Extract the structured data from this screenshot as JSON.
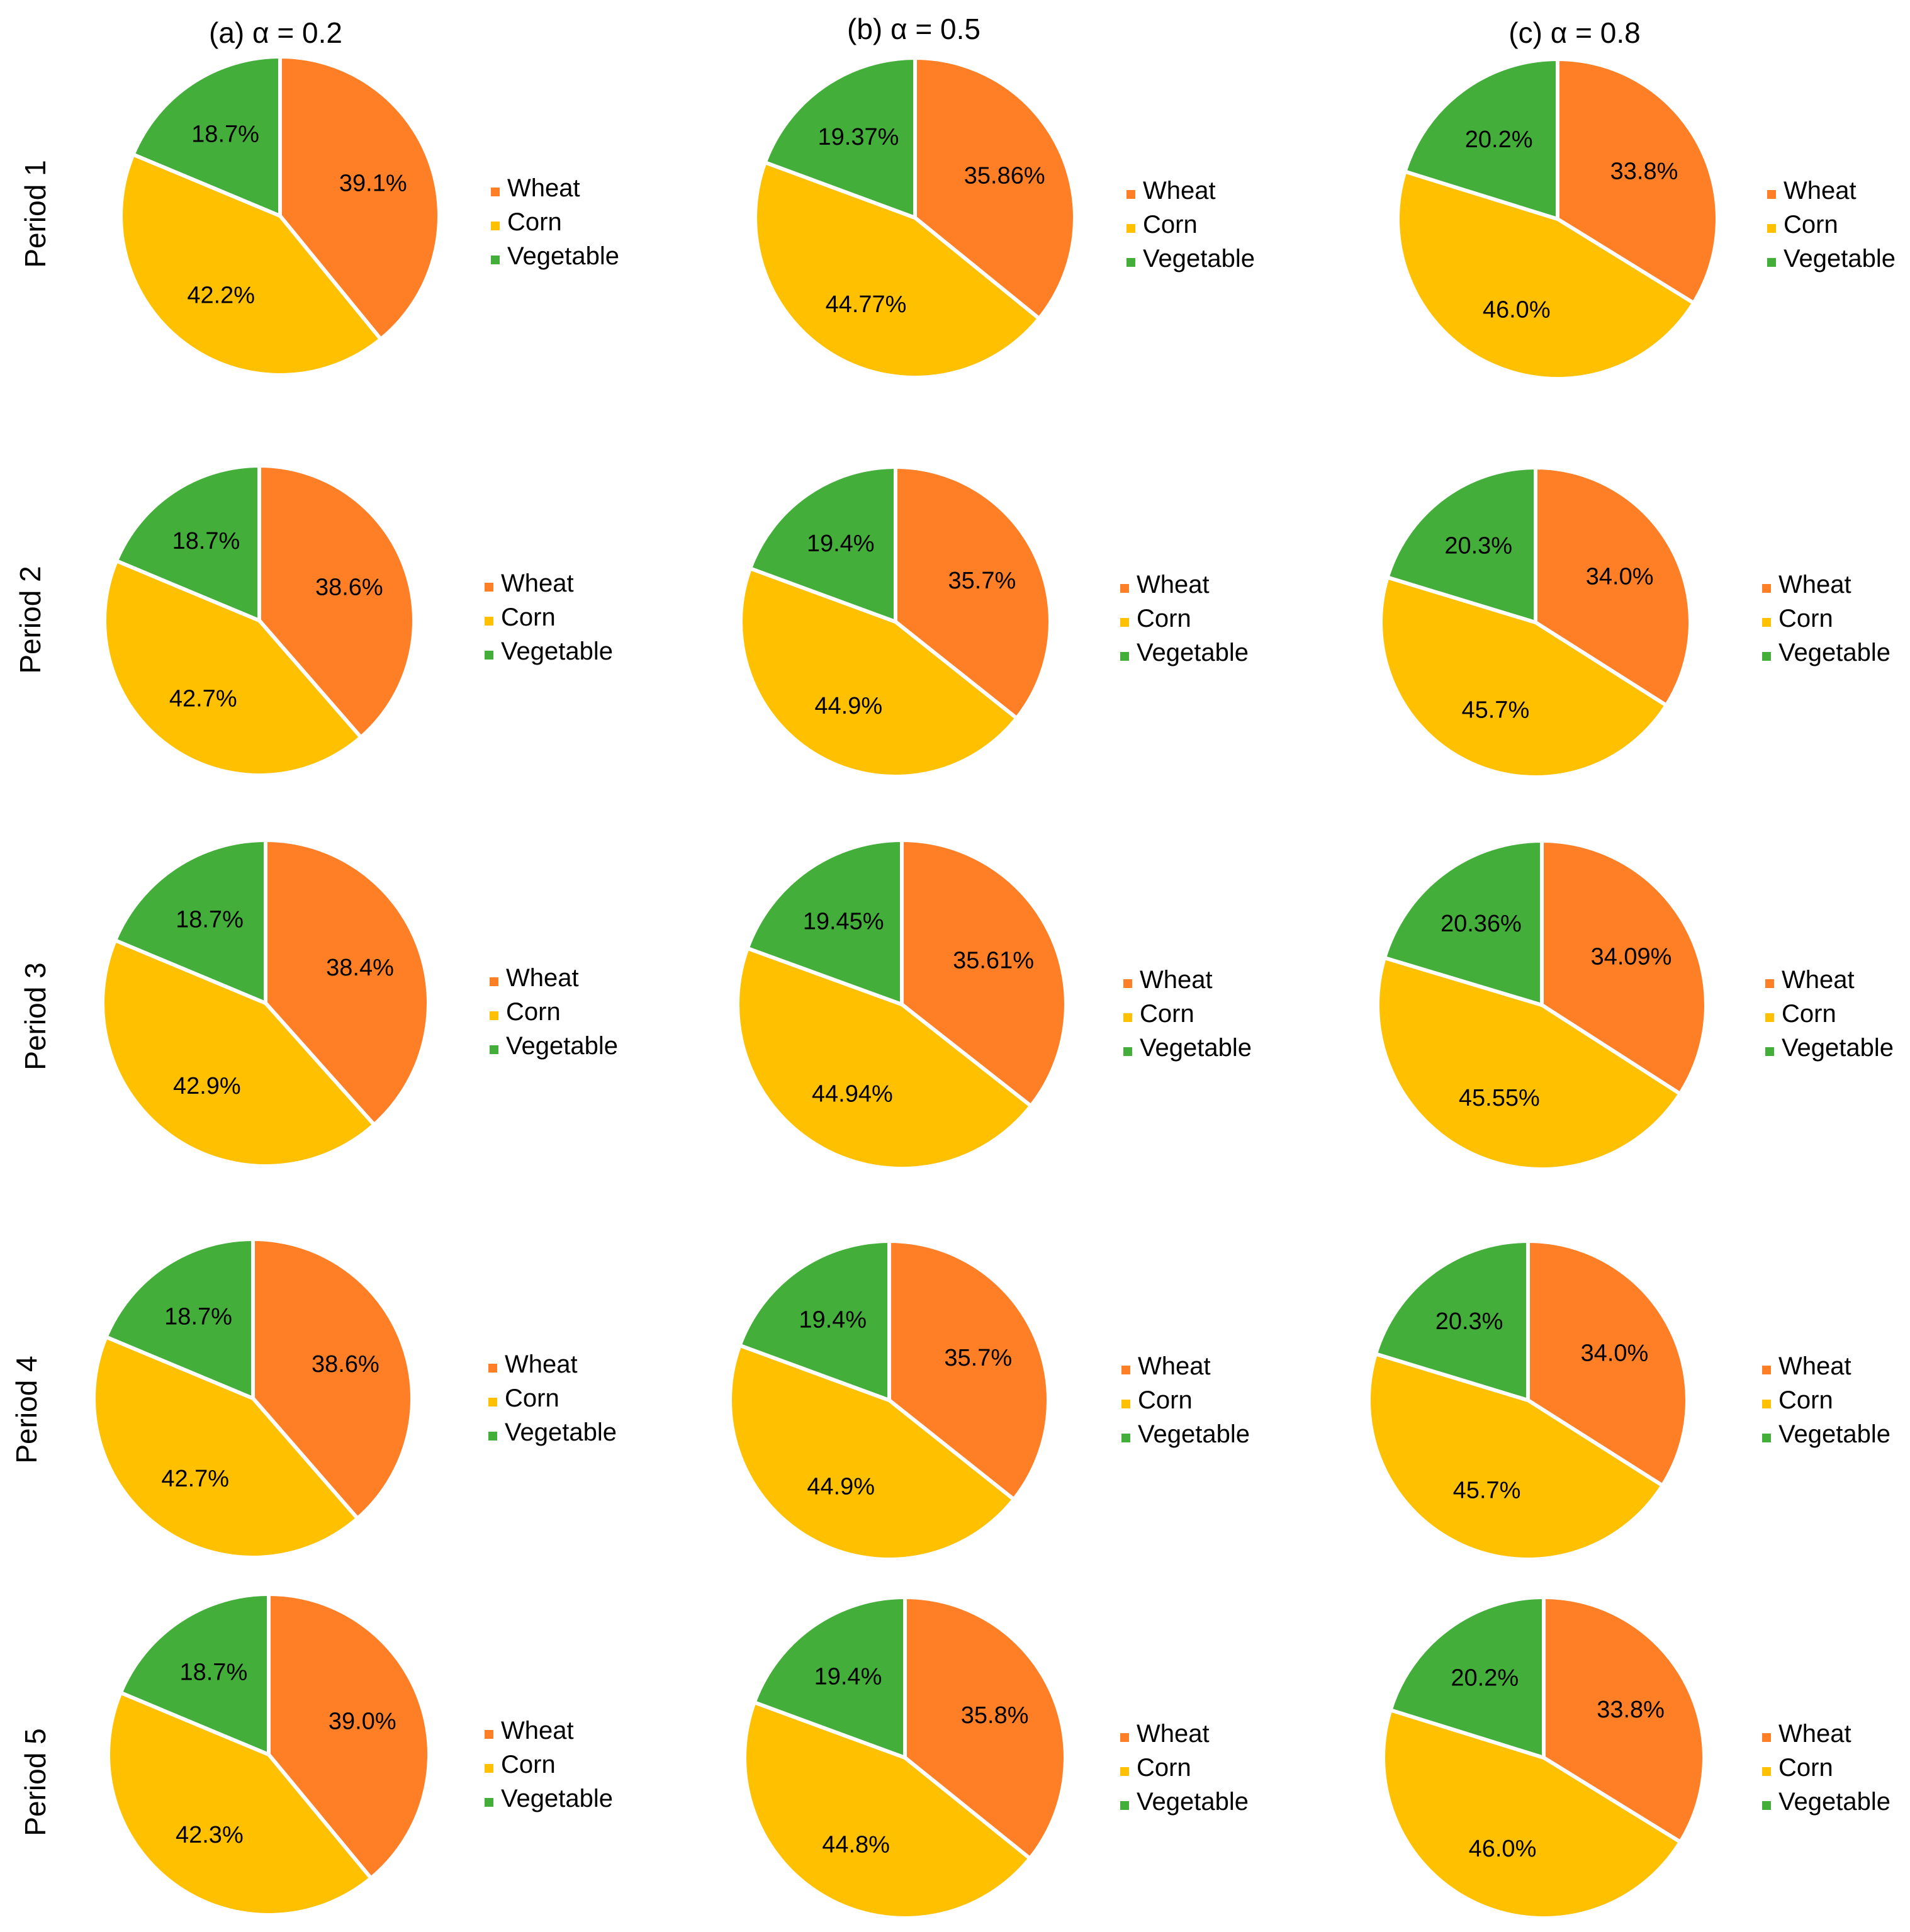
{
  "figure": {
    "columns": [
      "(a) α = 0.2",
      "(b) α = 0.5",
      "(c) α = 0.8"
    ],
    "rows": [
      "Period 1",
      "Period 2",
      "Period 3",
      "Period 4",
      "Period 5"
    ]
  },
  "colors": {
    "Wheat": "#FF7F27",
    "Corn": "#FFC000",
    "Vegetable": "#43AE3A",
    "separator": "#FFFFFF"
  },
  "chart_data": [
    {
      "type": "pie",
      "column": "(a) α = 0.2",
      "row": "Period 1",
      "categories": [
        "Wheat",
        "Corn",
        "Vegetable"
      ],
      "values": [
        39.1,
        42.2,
        18.7
      ],
      "labels": [
        "39.1%",
        "42.2%",
        "18.7%"
      ]
    },
    {
      "type": "pie",
      "column": "(b) α = 0.5",
      "row": "Period 1",
      "categories": [
        "Wheat",
        "Corn",
        "Vegetable"
      ],
      "values": [
        35.86,
        44.77,
        19.37
      ],
      "labels": [
        "35.86%",
        "44.77%",
        "19.37%"
      ]
    },
    {
      "type": "pie",
      "column": "(c) α = 0.8",
      "row": "Period 1",
      "categories": [
        "Wheat",
        "Corn",
        "Vegetable"
      ],
      "values": [
        33.8,
        46.0,
        20.2
      ],
      "labels": [
        "33.8%",
        "46.0%",
        "20.2%"
      ]
    },
    {
      "type": "pie",
      "column": "(a) α = 0.2",
      "row": "Period 2",
      "categories": [
        "Wheat",
        "Corn",
        "Vegetable"
      ],
      "values": [
        38.6,
        42.7,
        18.7
      ],
      "labels": [
        "38.6%",
        "42.7%",
        "18.7%"
      ]
    },
    {
      "type": "pie",
      "column": "(b) α = 0.5",
      "row": "Period 2",
      "categories": [
        "Wheat",
        "Corn",
        "Vegetable"
      ],
      "values": [
        35.7,
        44.9,
        19.4
      ],
      "labels": [
        "35.7%",
        "44.9%",
        "19.4%"
      ]
    },
    {
      "type": "pie",
      "column": "(c) α = 0.8",
      "row": "Period 2",
      "categories": [
        "Wheat",
        "Corn",
        "Vegetable"
      ],
      "values": [
        34.0,
        45.7,
        20.3
      ],
      "labels": [
        "34.0%",
        "45.7%",
        "20.3%"
      ]
    },
    {
      "type": "pie",
      "column": "(a) α = 0.2",
      "row": "Period 3",
      "categories": [
        "Wheat",
        "Corn",
        "Vegetable"
      ],
      "values": [
        38.4,
        42.9,
        18.7
      ],
      "labels": [
        "38.4%",
        "42.9%",
        "18.7%"
      ]
    },
    {
      "type": "pie",
      "column": "(b) α = 0.5",
      "row": "Period 3",
      "categories": [
        "Wheat",
        "Corn",
        "Vegetable"
      ],
      "values": [
        35.61,
        44.94,
        19.45
      ],
      "labels": [
        "35.61%",
        "44.94%",
        "19.45%"
      ]
    },
    {
      "type": "pie",
      "column": "(c) α = 0.8",
      "row": "Period 3",
      "categories": [
        "Wheat",
        "Corn",
        "Vegetable"
      ],
      "values": [
        34.09,
        45.55,
        20.36
      ],
      "labels": [
        "34.09%",
        "45.55%",
        "20.36%"
      ]
    },
    {
      "type": "pie",
      "column": "(a) α = 0.2",
      "row": "Period 4",
      "categories": [
        "Wheat",
        "Corn",
        "Vegetable"
      ],
      "values": [
        38.6,
        42.7,
        18.7
      ],
      "labels": [
        "38.6%",
        "42.7%",
        "18.7%"
      ]
    },
    {
      "type": "pie",
      "column": "(b) α = 0.5",
      "row": "Period 4",
      "categories": [
        "Wheat",
        "Corn",
        "Vegetable"
      ],
      "values": [
        35.7,
        44.9,
        19.4
      ],
      "labels": [
        "35.7%",
        "44.9%",
        "19.4%"
      ]
    },
    {
      "type": "pie",
      "column": "(c) α = 0.8",
      "row": "Period 4",
      "categories": [
        "Wheat",
        "Corn",
        "Vegetable"
      ],
      "values": [
        34.0,
        45.7,
        20.3
      ],
      "labels": [
        "34.0%",
        "45.7%",
        "20.3%"
      ]
    },
    {
      "type": "pie",
      "column": "(a) α = 0.2",
      "row": "Period 5",
      "categories": [
        "Wheat",
        "Corn",
        "Vegetable"
      ],
      "values": [
        39.0,
        42.3,
        18.7
      ],
      "labels": [
        "39.0%",
        "42.3%",
        "18.7%"
      ]
    },
    {
      "type": "pie",
      "column": "(b) α = 0.5",
      "row": "Period 5",
      "categories": [
        "Wheat",
        "Corn",
        "Vegetable"
      ],
      "values": [
        35.8,
        44.8,
        19.4
      ],
      "labels": [
        "35.8%",
        "44.8%",
        "19.4%"
      ]
    },
    {
      "type": "pie",
      "column": "(c) α = 0.8",
      "row": "Period 5",
      "categories": [
        "Wheat",
        "Corn",
        "Vegetable"
      ],
      "values": [
        33.8,
        46.0,
        20.2
      ],
      "labels": [
        "33.8%",
        "46.0%",
        "20.2%"
      ]
    }
  ]
}
